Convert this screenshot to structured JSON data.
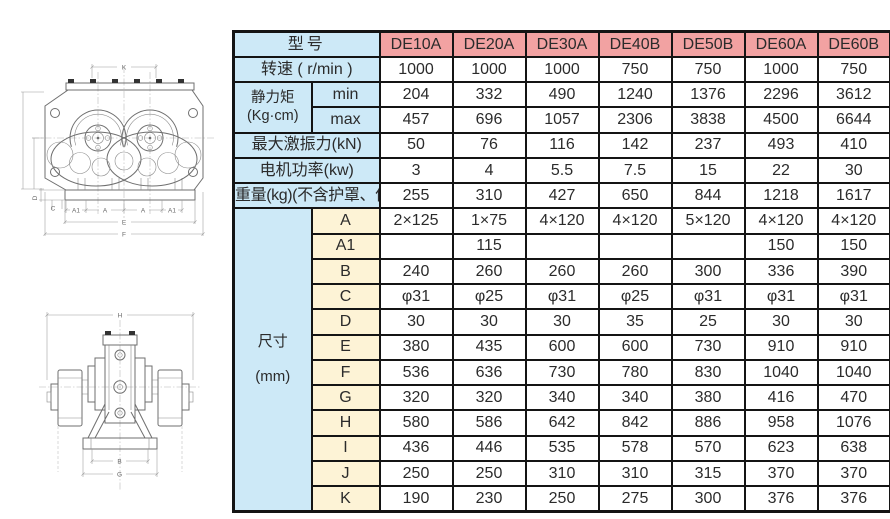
{
  "colors": {
    "header_pink": "#f2a2a2",
    "label_blue": "#cde9f7",
    "letter_cream": "#fdf3d6",
    "grid": "#141414",
    "text": "#2b2b2b"
  },
  "table": {
    "corner_label": "型号",
    "models": [
      "DE10A",
      "DE20A",
      "DE30A",
      "DE40B",
      "DE50B",
      "DE60A",
      "DE60B"
    ],
    "rows": [
      {
        "type": "spec",
        "label": "转速 ( r/min )",
        "values": [
          "1000",
          "1000",
          "1000",
          "750",
          "750",
          "1000",
          "750"
        ]
      },
      {
        "type": "pair",
        "label": "静力矩",
        "unit": "(Kg·cm)",
        "subs": [
          {
            "sub": "min",
            "values": [
              "204",
              "332",
              "490",
              "1240",
              "1376",
              "2296",
              "3612"
            ]
          },
          {
            "sub": "max",
            "values": [
              "457",
              "696",
              "1057",
              "2306",
              "3838",
              "4500",
              "6644"
            ]
          }
        ]
      },
      {
        "type": "spec",
        "label": "最大激振力(kN)",
        "values": [
          "50",
          "76",
          "116",
          "142",
          "237",
          "493",
          "410"
        ]
      },
      {
        "type": "spec",
        "label": "电机功率(kw)",
        "values": [
          "3",
          "4",
          "5.5",
          "7.5",
          "15",
          "22",
          "30"
        ]
      },
      {
        "type": "spec",
        "label": "重量(kg)(不含护罩、偏心块)",
        "small": true,
        "values": [
          "255",
          "310",
          "427",
          "650",
          "844",
          "1218",
          "1617"
        ]
      },
      {
        "type": "dims",
        "label": "尺寸",
        "unit": "(mm)",
        "rows": [
          {
            "letter": "A",
            "values": [
              "2×125",
              "1×75",
              "4×120",
              "4×120",
              "5×120",
              "4×120",
              "4×120"
            ]
          },
          {
            "letter": "A1",
            "values": [
              "",
              "115",
              "",
              "",
              "",
              "150",
              "150"
            ]
          },
          {
            "letter": "B",
            "values": [
              "240",
              "260",
              "260",
              "260",
              "300",
              "336",
              "390"
            ]
          },
          {
            "letter": "C",
            "values": [
              "φ31",
              "φ25",
              "φ31",
              "φ25",
              "φ31",
              "φ31",
              "φ31"
            ]
          },
          {
            "letter": "D",
            "values": [
              "30",
              "30",
              "30",
              "35",
              "25",
              "30",
              "30"
            ]
          },
          {
            "letter": "E",
            "values": [
              "380",
              "435",
              "600",
              "600",
              "730",
              "910",
              "910"
            ]
          },
          {
            "letter": "F",
            "values": [
              "536",
              "636",
              "730",
              "780",
              "830",
              "1040",
              "1040"
            ]
          },
          {
            "letter": "G",
            "values": [
              "320",
              "320",
              "340",
              "340",
              "380",
              "416",
              "470"
            ]
          },
          {
            "letter": "H",
            "values": [
              "580",
              "586",
              "642",
              "842",
              "886",
              "958",
              "1076"
            ]
          },
          {
            "letter": "I",
            "values": [
              "436",
              "446",
              "535",
              "578",
              "570",
              "623",
              "638"
            ]
          },
          {
            "letter": "J",
            "values": [
              "250",
              "250",
              "310",
              "310",
              "315",
              "370",
              "370"
            ]
          },
          {
            "letter": "K",
            "values": [
              "190",
              "230",
              "250",
              "275",
              "300",
              "376",
              "376"
            ]
          }
        ]
      }
    ]
  },
  "drawings": {
    "front_view": {
      "dim_labels": {
        "k": "K",
        "a1_left": "A1",
        "a_left": "A",
        "a_right": "A",
        "a1_right": "A1",
        "e": "E",
        "f": "F",
        "c": "C",
        "d": "D"
      }
    },
    "side_view": {
      "dim_labels": {
        "h": "H",
        "b": "B",
        "g": "G"
      }
    }
  }
}
